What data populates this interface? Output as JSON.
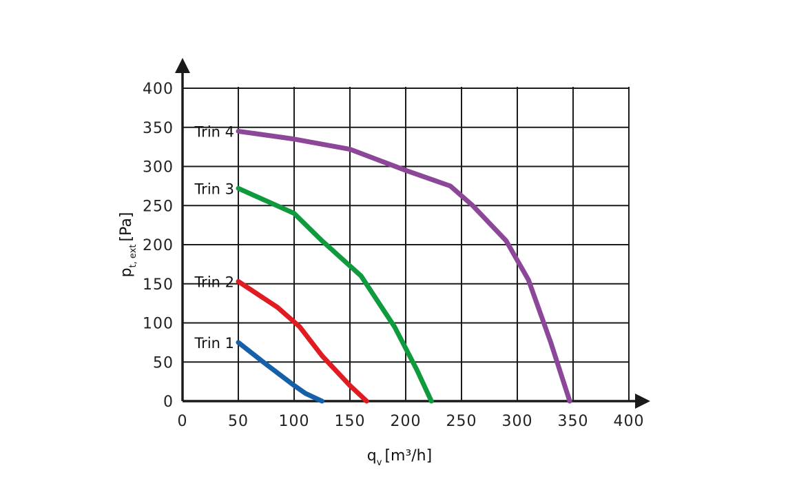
{
  "chart_data": {
    "type": "line",
    "xlabel": {
      "main": "q",
      "sub": "v",
      "unit": "[m³/h]"
    },
    "ylabel": {
      "main": "p",
      "sub": "t, ext",
      "unit": "[Pa]"
    },
    "xlim": [
      0,
      400
    ],
    "ylim": [
      0,
      400
    ],
    "x_ticks": [
      0,
      50,
      100,
      150,
      200,
      250,
      300,
      350,
      400
    ],
    "y_ticks": [
      0,
      50,
      100,
      150,
      200,
      250,
      300,
      350,
      400
    ],
    "grid": true,
    "series": [
      {
        "name": "Trin 1",
        "color": "#1560a8",
        "x": [
          50,
          75,
          100,
          110,
          125
        ],
        "y": [
          75,
          47,
          20,
          10,
          0
        ]
      },
      {
        "name": "Trin 2",
        "color": "#e01b22",
        "x": [
          50,
          85,
          105,
          125,
          150,
          165
        ],
        "y": [
          153,
          120,
          95,
          58,
          20,
          0
        ]
      },
      {
        "name": "Trin 3",
        "color": "#0f9a3e",
        "x": [
          50,
          100,
          125,
          160,
          190,
          210,
          223
        ],
        "y": [
          272,
          240,
          205,
          160,
          95,
          40,
          0
        ]
      },
      {
        "name": "Trin 4",
        "color": "#8c4799",
        "x": [
          50,
          100,
          150,
          200,
          240,
          260,
          290,
          310,
          330,
          347
        ],
        "y": [
          345,
          335,
          322,
          295,
          275,
          250,
          205,
          155,
          75,
          0
        ]
      }
    ]
  }
}
